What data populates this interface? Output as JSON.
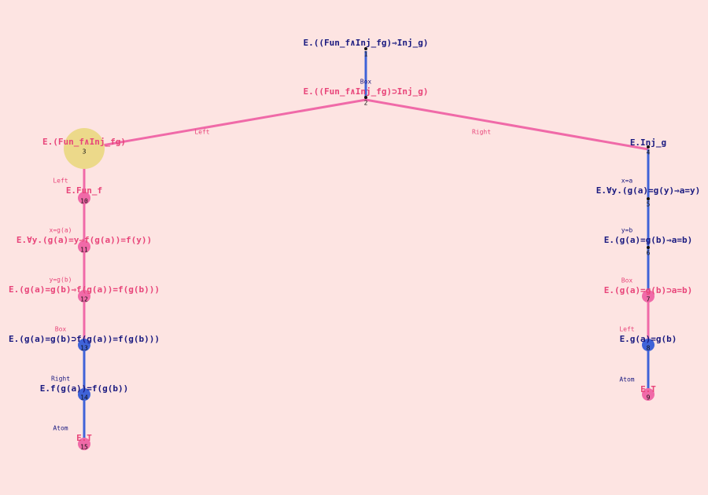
{
  "nodes": [
    {
      "id": 1,
      "formula": "E.((Fun_f∧Inj_fg)⇒Inj_g)"
    },
    {
      "id": 2,
      "rule": "Box",
      "formula": "E.((Fun_f∧Inj_fg)⊃Inj_g)"
    },
    {
      "id": 3,
      "formula": "E.(Fun_f∧Inj_fg)"
    },
    {
      "id": 4,
      "formula": "E.Inj_g"
    },
    {
      "id": 5,
      "rule": "x=a",
      "formula": "E.∀y.(g(a)=g(y)⇒a=y)"
    },
    {
      "id": 6,
      "rule": "y=b",
      "formula": "E.(g(a)=g(b)⇒a=b)"
    },
    {
      "id": 7,
      "rule": "Box",
      "formula": "E.(g(a)=g(b)⊃a=b)"
    },
    {
      "id": 8,
      "rule": "Left",
      "formula": "E.g(a)=g(b)"
    },
    {
      "id": 9,
      "rule": "Atom",
      "formula": "E.T"
    },
    {
      "id": 10,
      "rule": "Left",
      "formula": "E.Fun_f"
    },
    {
      "id": 11,
      "rule": "x=g(a)",
      "formula": "E.∀y.(g(a)=y⇒f(g(a))=f(y))"
    },
    {
      "id": 12,
      "rule": "y=g(b)",
      "formula": "E.(g(a)=g(b)⇒f(g(a))=f(g(b)))"
    },
    {
      "id": 13,
      "rule": "Box",
      "formula": "E.(g(a)=g(b)⊃f(g(a))=f(g(b)))"
    },
    {
      "id": 14,
      "rule": "Right",
      "formula": "E.f(g(a))=f(g(b))"
    },
    {
      "id": 15,
      "rule": "Atom",
      "formula": "E.T"
    }
  ],
  "edges": [
    {
      "label": "Left"
    },
    {
      "label": "Right"
    }
  ]
}
